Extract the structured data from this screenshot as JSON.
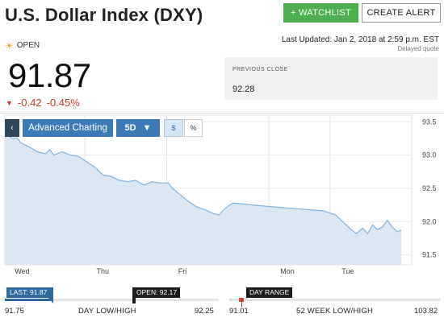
{
  "header": {
    "title": "U.S. Dollar Index (DXY)",
    "watchlist_label": "+ WATCHLIST",
    "alert_label": "CREATE ALERT"
  },
  "status": {
    "market_state": "OPEN",
    "last_updated": "Last Updated: Jan 2, 2018 at 2:59 p.m. EST",
    "delayed": "Delayed quote"
  },
  "quote": {
    "price": "91.87",
    "change": "-0.42",
    "change_pct": "-0.45%",
    "down_color": "#c0392b"
  },
  "previous_close": {
    "label": "PREVIOUS CLOSE",
    "value": "92.28"
  },
  "toolbar": {
    "back_icon": "chevron-left-icon",
    "back_glyph": "‹",
    "advanced_label": "Advanced Charting",
    "range_label": "5D",
    "range_caret": "▼",
    "dollar_label": "$",
    "percent_label": "%"
  },
  "chart_data": {
    "type": "area",
    "x_labels": [
      "Wed",
      "Thu",
      "Fri",
      "Mon",
      "Tue"
    ],
    "y_ticks": [
      "93.5",
      "93.0",
      "92.5",
      "92.0",
      "91.5"
    ],
    "y_tick_values": [
      93.5,
      93.0,
      92.5,
      92.0,
      91.5
    ],
    "ylim": [
      91.35,
      93.6
    ],
    "x_range": [
      0,
      4.85
    ],
    "series": [
      {
        "points": [
          [
            0.0,
            93.3
          ],
          [
            0.05,
            93.28
          ],
          [
            0.1,
            93.25
          ],
          [
            0.15,
            93.26
          ],
          [
            0.2,
            93.18
          ],
          [
            0.3,
            93.12
          ],
          [
            0.4,
            93.05
          ],
          [
            0.5,
            93.02
          ],
          [
            0.55,
            93.08
          ],
          [
            0.6,
            93.0
          ],
          [
            0.7,
            93.05
          ],
          [
            0.8,
            93.0
          ],
          [
            0.9,
            92.98
          ],
          [
            1.0,
            92.9
          ],
          [
            1.1,
            92.82
          ],
          [
            1.2,
            92.7
          ],
          [
            1.3,
            92.68
          ],
          [
            1.4,
            92.62
          ],
          [
            1.5,
            92.6
          ],
          [
            1.6,
            92.62
          ],
          [
            1.7,
            92.55
          ],
          [
            1.8,
            92.6
          ],
          [
            1.9,
            92.58
          ],
          [
            2.0,
            92.58
          ],
          [
            2.05,
            92.5
          ],
          [
            2.15,
            92.4
          ],
          [
            2.25,
            92.3
          ],
          [
            2.35,
            92.22
          ],
          [
            2.45,
            92.18
          ],
          [
            2.55,
            92.12
          ],
          [
            2.62,
            92.1
          ],
          [
            2.68,
            92.18
          ],
          [
            2.75,
            92.25
          ],
          [
            2.8,
            92.28
          ],
          [
            3.1,
            92.24
          ],
          [
            3.5,
            92.2
          ],
          [
            3.9,
            92.16
          ],
          [
            4.05,
            92.1
          ],
          [
            4.15,
            91.98
          ],
          [
            4.22,
            91.9
          ],
          [
            4.3,
            91.82
          ],
          [
            4.38,
            91.9
          ],
          [
            4.44,
            91.82
          ],
          [
            4.5,
            91.95
          ],
          [
            4.56,
            91.88
          ],
          [
            4.62,
            91.92
          ],
          [
            4.68,
            92.02
          ],
          [
            4.74,
            91.92
          ],
          [
            4.8,
            91.85
          ],
          [
            4.85,
            91.87
          ]
        ],
        "line_color": "#7fb2de",
        "fill_color": "#dbe8f4"
      }
    ],
    "grid": true
  },
  "day_range": {
    "last_label": "LAST: 91.87",
    "open_label": "OPEN: 92.17",
    "low": "91.75",
    "high": "92.25",
    "caption": "DAY LOW/HIGH",
    "last_fraction": 0.24
  },
  "week_range": {
    "tag_label": "DAY RANGE",
    "low": "91.01",
    "high": "103.82",
    "caption": "52 WEEK LOW/HIGH",
    "fill_color": "#e04b2e"
  }
}
